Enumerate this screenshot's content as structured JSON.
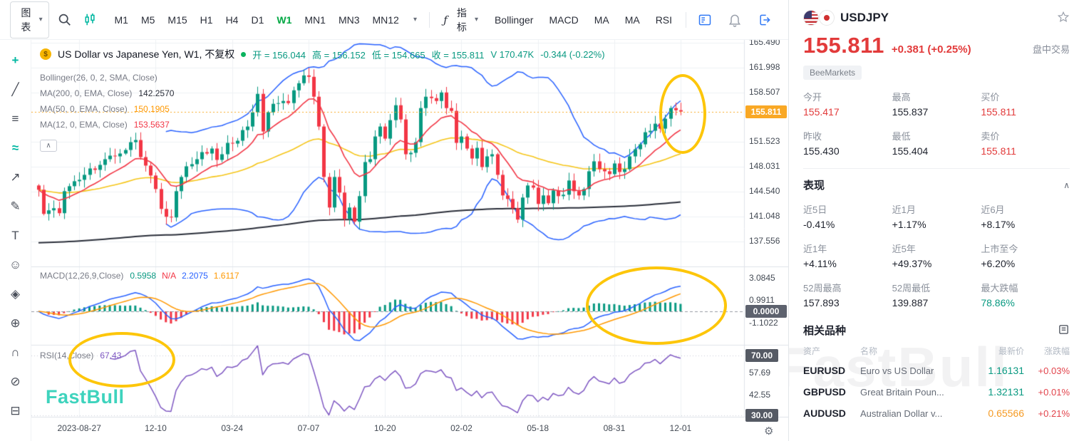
{
  "toolbar": {
    "chart_type_label": "图表",
    "timeframes": [
      "M1",
      "M5",
      "M15",
      "H1",
      "H4",
      "D1",
      "W1",
      "MN1",
      "MN3",
      "MN12"
    ],
    "active_timeframe": "W1",
    "fx_glyph": "ƒ",
    "indicators_label": "指标",
    "indicator_shortcuts": [
      "Bollinger",
      "MACD",
      "MA",
      "MA",
      "RSI"
    ]
  },
  "left_tools": [
    {
      "name": "crosshair-tool-icon",
      "glyph": "+",
      "accent": true
    },
    {
      "name": "trendline-tool-icon",
      "glyph": "╱",
      "accent": false
    },
    {
      "name": "lines-tool-icon",
      "glyph": "≡",
      "accent": false
    },
    {
      "name": "wave-tool-icon",
      "glyph": "≈",
      "accent": true
    },
    {
      "name": "curve-tool-icon",
      "glyph": "↗",
      "accent": false
    },
    {
      "name": "brush-tool-icon",
      "glyph": "✎",
      "accent": false
    },
    {
      "name": "text-tool-icon",
      "glyph": "T",
      "accent": false
    },
    {
      "name": "emoji-tool-icon",
      "glyph": "☺",
      "accent": false
    },
    {
      "name": "tag-tool-icon",
      "glyph": "◈",
      "accent": false
    },
    {
      "name": "zoom-tool-icon",
      "glyph": "⊕",
      "accent": false
    },
    {
      "name": "magnet-tool-icon",
      "glyph": "∩",
      "accent": false
    },
    {
      "name": "eraser-tool-icon",
      "glyph": "⊘",
      "accent": false
    },
    {
      "name": "lock-tool-icon",
      "glyph": "⊟",
      "accent": false
    }
  ],
  "chart": {
    "legend": {
      "title": "US Dollar vs Japanese Yen, W1, 不复权",
      "open": "开 = 156.044",
      "high": "高 = 156.152",
      "low": "低 = 154.665",
      "close": "收 = 155.811",
      "volume": "V 170.47K",
      "change": "-0.344 (-0.22%)",
      "bollinger": "Bollinger(26, 0, 2, SMA, Close)",
      "ma200_label": "MA(200, 0, EMA, Close)",
      "ma200_value": "142.2570",
      "ma50_label": "MA(50, 0, EMA, Close)",
      "ma50_value": "150.1905",
      "ma12_label": "MA(12, 0, EMA, Close)",
      "ma12_value": "153.5637"
    },
    "macd_legend": {
      "label": "MACD(12,26,9,Close)",
      "values": [
        {
          "text": "0.5958",
          "color": "#089981"
        },
        {
          "text": "N/A",
          "color": "#f23645"
        },
        {
          "text": "2.2075",
          "color": "#2962ff"
        },
        {
          "text": "1.6117",
          "color": "#ff9800"
        }
      ]
    },
    "rsi_legend": {
      "label": "RSI(14,Close)",
      "value": "67.43"
    },
    "watermark": "FastBull"
  },
  "chart_data": {
    "type": "candlestick",
    "symbol": "USDJPY",
    "timeframe": "W1",
    "y_range": [
      134.0,
      165.9
    ],
    "price_ticks": [
      "165.490",
      "161.998",
      "158.507",
      "151.523",
      "148.031",
      "144.540",
      "141.048",
      "137.556"
    ],
    "current_price": "155.811",
    "time_ticks": [
      {
        "label": "2023-08-27",
        "index": 8
      },
      {
        "label": "12-10",
        "index": 23
      },
      {
        "label": "03-24",
        "index": 38
      },
      {
        "label": "07-07",
        "index": 53
      },
      {
        "label": "10-20",
        "index": 68
      },
      {
        "label": "02-02",
        "index": 83
      },
      {
        "label": "05-18",
        "index": 98
      },
      {
        "label": "08-31",
        "index": 113
      },
      {
        "label": "12-01",
        "index": 126
      }
    ],
    "macd_ticks": [
      "3.0845",
      "0.9911",
      "-1.1022"
    ],
    "macd_zero": "0.0000",
    "rsi_ticks": [
      "70.00",
      "57.69",
      "42.55",
      "30.00"
    ],
    "rsi_boxed": [
      "70.00",
      "30.00"
    ],
    "indicators": {
      "bollinger_period": 26,
      "bollinger_dev": 2,
      "ma_fast": 12,
      "ma_mid": 50,
      "ma_slow": 200,
      "macd": [
        12,
        26,
        9
      ],
      "rsi_period": 14
    },
    "closes": [
      144.8,
      141.4,
      141.9,
      142.2,
      141.5,
      144.6,
      145.3,
      146.0,
      146.2,
      146.9,
      147.8,
      147.6,
      148.3,
      149.1,
      149.6,
      149.5,
      149.9,
      150.4,
      151.5,
      151.8,
      149.4,
      148.2,
      146.8,
      144.9,
      142.1,
      141.0,
      140.9,
      144.6,
      146.6,
      148.1,
      148.4,
      149.1,
      150.1,
      149.9,
      150.6,
      149.0,
      149.8,
      151.4,
      151.3,
      151.7,
      153.2,
      153.7,
      155.7,
      158.3,
      153.0,
      155.7,
      156.9,
      157.0,
      157.3,
      157.0,
      158.8,
      159.8,
      160.9,
      160.7,
      157.9,
      153.7,
      146.6,
      142.3,
      146.6,
      144.4,
      140.7,
      142.3,
      140.3,
      143.9,
      148.7,
      149.1,
      152.3,
      153.7,
      152.0,
      154.6,
      156.7,
      154.7,
      149.8,
      150.0,
      151.5,
      156.3,
      157.9,
      157.7,
      157.3,
      158.5,
      156.3,
      155.9,
      151.4,
      152.3,
      150.6,
      149.2,
      150.7,
      148.0,
      149.5,
      149.8,
      146.9,
      144.0,
      143.5,
      142.2,
      140.6,
      143.7,
      145.4,
      145.1,
      142.8,
      144.0,
      142.9,
      144.7,
      143.9,
      144.1,
      146.1,
      144.6,
      144.0,
      144.9,
      147.4,
      148.8,
      147.7,
      147.4,
      147.0,
      148.5,
      147.3,
      147.7,
      149.5,
      150.5,
      151.2,
      152.9,
      153.1,
      154.1,
      153.4,
      154.8,
      156.3,
      156.0,
      155.811
    ]
  },
  "colors": {
    "up": "#089981",
    "down": "#f23645",
    "bollinger": "#2962ff",
    "ma50": "#f5c518",
    "ma12": "#f23645",
    "ma200": "#2a2e39",
    "macd_line": "#2962ff",
    "macd_signal": "#ff9800",
    "rsi_line": "#7e57c2",
    "grid": "#eef0f4",
    "separator": "#dfe3ea",
    "axis_text": "#434a54",
    "current_badge": "#f9a825",
    "zero_badge": "#5d626e",
    "level_badge": "#555a64",
    "annotation": "#fdc60a",
    "accent": "#00b7a1",
    "active_tf": "#00a843",
    "price_up_red": "#e23a3a",
    "green_value": "#089981",
    "orange_value": "#f59a23",
    "change_red": "#e2434b"
  },
  "sidebar": {
    "symbol": "USDJPY",
    "price": "155.811",
    "change": "+0.381",
    "change_pct": "(+0.25%)",
    "session_label": "盘中交易",
    "broker_badge": "BeeMarkets",
    "stats": [
      {
        "label": "今开",
        "value": "155.417",
        "color": "red"
      },
      {
        "label": "最高",
        "value": "155.837",
        "color": "dark"
      },
      {
        "label": "买价",
        "value": "155.811",
        "color": "red"
      },
      {
        "label": "昨收",
        "value": "155.430",
        "color": "dark"
      },
      {
        "label": "最低",
        "value": "155.404",
        "color": "dark"
      },
      {
        "label": "卖价",
        "value": "155.811",
        "color": "red"
      }
    ],
    "performance_title": "表现",
    "performance": [
      {
        "label": "近5日",
        "value": "-0.41%",
        "color": "dark"
      },
      {
        "label": "近1月",
        "value": "+1.17%",
        "color": "dark"
      },
      {
        "label": "近6月",
        "value": "+8.17%",
        "color": "dark"
      },
      {
        "label": "近1年",
        "value": "+4.11%",
        "color": "dark"
      },
      {
        "label": "近5年",
        "value": "+49.37%",
        "color": "dark"
      },
      {
        "label": "上市至今",
        "value": "+6.20%",
        "color": "dark"
      },
      {
        "label": "52周最高",
        "value": "157.893",
        "color": "dark"
      },
      {
        "label": "52周最低",
        "value": "139.887",
        "color": "dark"
      },
      {
        "label": "最大跌幅",
        "value": "78.86%",
        "color": "green"
      }
    ],
    "related_title": "相关品种",
    "related_headers": [
      "资产",
      "名称",
      "最新价",
      "涨跌幅"
    ],
    "related": [
      {
        "symbol": "EURUSD",
        "name": "Euro vs US Dollar",
        "price": "1.16131",
        "price_color": "green",
        "change": "+0.03%"
      },
      {
        "symbol": "GBPUSD",
        "name": "Great Britain Poun...",
        "price": "1.32131",
        "price_color": "green",
        "change": "+0.01%"
      },
      {
        "symbol": "AUDUSD",
        "name": "Australian Dollar v...",
        "price": "0.65566",
        "price_color": "orange",
        "change": "+0.21%"
      }
    ],
    "watermark": "FastBull"
  }
}
